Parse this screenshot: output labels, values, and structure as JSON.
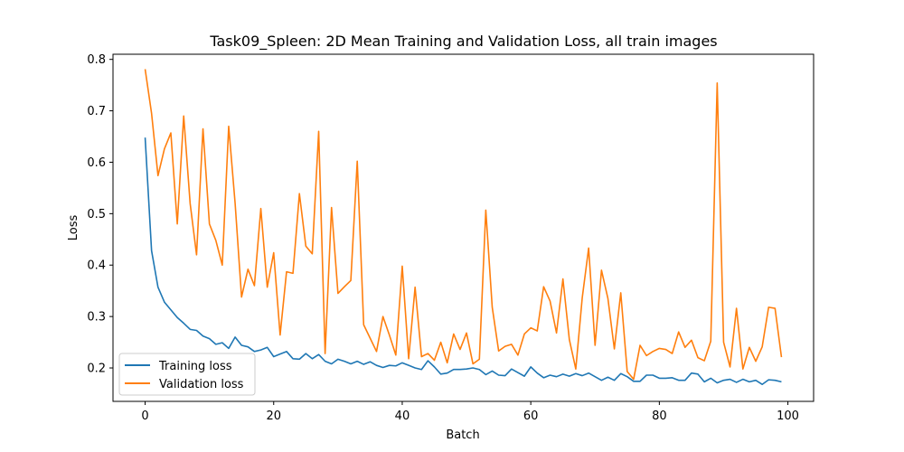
{
  "chart_data": {
    "type": "line",
    "title": "Task09_Spleen: 2D Mean Training and Validation Loss, all train images",
    "xlabel": "Batch",
    "ylabel": "Loss",
    "xlim": [
      -5,
      104
    ],
    "ylim": [
      0.135,
      0.81
    ],
    "xticks": [
      0,
      20,
      40,
      60,
      80,
      100
    ],
    "yticks": [
      0.2,
      0.3,
      0.4,
      0.5,
      0.6,
      0.7,
      0.8
    ],
    "xtick_labels": [
      "0",
      "20",
      "40",
      "60",
      "80",
      "100"
    ],
    "ytick_labels": [
      "0.2",
      "0.3",
      "0.4",
      "0.5",
      "0.6",
      "0.7",
      "0.8"
    ],
    "grid": false,
    "legend_position": "bottom-left",
    "series": [
      {
        "name": "Training loss",
        "color": "#1f77b4",
        "x": [
          0,
          1,
          2,
          3,
          4,
          5,
          6,
          7,
          8,
          9,
          10,
          11,
          12,
          13,
          14,
          15,
          16,
          17,
          18,
          19,
          20,
          21,
          22,
          23,
          24,
          25,
          26,
          27,
          28,
          29,
          30,
          31,
          32,
          33,
          34,
          35,
          36,
          37,
          38,
          39,
          40,
          41,
          42,
          43,
          44,
          45,
          46,
          47,
          48,
          49,
          50,
          51,
          52,
          53,
          54,
          55,
          56,
          57,
          58,
          59,
          60,
          61,
          62,
          63,
          64,
          65,
          66,
          67,
          68,
          69,
          70,
          71,
          72,
          73,
          74,
          75,
          76,
          77,
          78,
          79,
          80,
          81,
          82,
          83,
          84,
          85,
          86,
          87,
          88,
          89,
          90,
          91,
          92,
          93,
          94,
          95,
          96,
          97,
          98,
          99
        ],
        "values": [
          0.648,
          0.428,
          0.357,
          0.328,
          0.313,
          0.298,
          0.287,
          0.275,
          0.273,
          0.262,
          0.257,
          0.246,
          0.249,
          0.238,
          0.26,
          0.244,
          0.241,
          0.232,
          0.235,
          0.24,
          0.222,
          0.227,
          0.232,
          0.218,
          0.217,
          0.228,
          0.218,
          0.226,
          0.213,
          0.208,
          0.217,
          0.213,
          0.208,
          0.213,
          0.207,
          0.212,
          0.205,
          0.201,
          0.205,
          0.204,
          0.21,
          0.205,
          0.2,
          0.197,
          0.214,
          0.202,
          0.188,
          0.19,
          0.197,
          0.197,
          0.198,
          0.2,
          0.197,
          0.187,
          0.194,
          0.186,
          0.185,
          0.198,
          0.191,
          0.184,
          0.202,
          0.19,
          0.181,
          0.186,
          0.183,
          0.188,
          0.184,
          0.189,
          0.185,
          0.19,
          0.183,
          0.176,
          0.182,
          0.176,
          0.189,
          0.183,
          0.174,
          0.174,
          0.186,
          0.186,
          0.18,
          0.18,
          0.181,
          0.176,
          0.176,
          0.19,
          0.188,
          0.173,
          0.18,
          0.171,
          0.176,
          0.178,
          0.172,
          0.178,
          0.173,
          0.176,
          0.168,
          0.177,
          0.176,
          0.173
        ]
      },
      {
        "name": "Validation loss",
        "color": "#ff7f0e",
        "x": [
          0,
          1,
          2,
          3,
          4,
          5,
          6,
          7,
          8,
          9,
          10,
          11,
          12,
          13,
          14,
          15,
          16,
          17,
          18,
          19,
          20,
          21,
          22,
          23,
          24,
          25,
          26,
          27,
          28,
          29,
          30,
          31,
          32,
          33,
          34,
          35,
          36,
          37,
          38,
          39,
          40,
          41,
          42,
          43,
          44,
          45,
          46,
          47,
          48,
          49,
          50,
          51,
          52,
          53,
          54,
          55,
          56,
          57,
          58,
          59,
          60,
          61,
          62,
          63,
          64,
          65,
          66,
          67,
          68,
          69,
          70,
          71,
          72,
          73,
          74,
          75,
          76,
          77,
          78,
          79,
          80,
          81,
          82,
          83,
          84,
          85,
          86,
          87,
          88,
          89,
          90,
          91,
          92,
          93,
          94,
          95,
          96,
          97,
          98,
          99
        ],
        "values": [
          0.781,
          0.695,
          0.574,
          0.626,
          0.657,
          0.48,
          0.69,
          0.52,
          0.42,
          0.665,
          0.48,
          0.448,
          0.4,
          0.67,
          0.52,
          0.338,
          0.392,
          0.36,
          0.51,
          0.357,
          0.424,
          0.264,
          0.387,
          0.384,
          0.539,
          0.437,
          0.422,
          0.66,
          0.228,
          0.512,
          0.345,
          0.358,
          0.37,
          0.602,
          0.284,
          0.258,
          0.232,
          0.3,
          0.264,
          0.225,
          0.398,
          0.218,
          0.357,
          0.222,
          0.228,
          0.215,
          0.25,
          0.21,
          0.266,
          0.236,
          0.268,
          0.208,
          0.217,
          0.507,
          0.318,
          0.233,
          0.242,
          0.246,
          0.225,
          0.266,
          0.278,
          0.272,
          0.358,
          0.33,
          0.268,
          0.373,
          0.255,
          0.198,
          0.336,
          0.433,
          0.244,
          0.39,
          0.335,
          0.237,
          0.346,
          0.193,
          0.178,
          0.244,
          0.224,
          0.232,
          0.238,
          0.236,
          0.228,
          0.27,
          0.24,
          0.254,
          0.22,
          0.214,
          0.252,
          0.754,
          0.25,
          0.202,
          0.316,
          0.198,
          0.24,
          0.213,
          0.241,
          0.318,
          0.316,
          0.221
        ]
      }
    ]
  }
}
